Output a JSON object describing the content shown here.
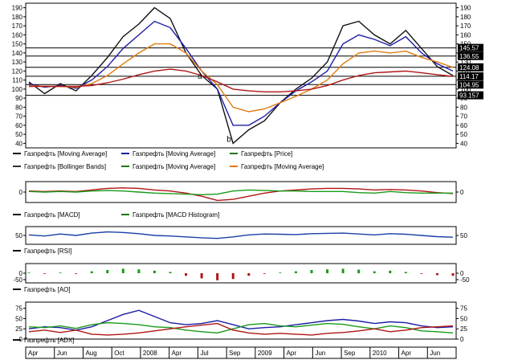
{
  "chart_data": [
    {
      "type": "line",
      "panel": "price",
      "ylim": [
        35,
        195
      ],
      "yticks": [
        40,
        50,
        60,
        70,
        80,
        90,
        100,
        110,
        120,
        130,
        140,
        150,
        160,
        170,
        180,
        190
      ],
      "x": [
        0,
        1,
        2,
        3,
        4,
        5,
        6,
        7,
        8,
        9,
        10,
        11,
        12,
        13,
        14,
        15,
        16,
        17,
        18,
        19,
        20,
        21,
        22,
        23,
        24,
        25,
        26,
        27
      ],
      "series": [
        {
          "name": "Газпрефть [Price]",
          "color": "#111111",
          "values": [
            108,
            95,
            106,
            98,
            115,
            135,
            158,
            172,
            190,
            178,
            140,
            115,
            100,
            40,
            55,
            65,
            85,
            100,
            112,
            130,
            170,
            175,
            160,
            150,
            165,
            145,
            125,
            115
          ]
        },
        {
          "name": "Газпрефть [Moving Average]",
          "color": "#1d1da8",
          "values": [
            106,
            102,
            104,
            101,
            110,
            125,
            145,
            160,
            175,
            168,
            145,
            120,
            100,
            60,
            60,
            70,
            85,
            98,
            108,
            120,
            150,
            160,
            155,
            148,
            158,
            140,
            128,
            120
          ]
        },
        {
          "name": "Газпрефть [Moving Average]",
          "color": "#e07a10",
          "values": [
            104,
            103,
            103,
            102,
            106,
            115,
            128,
            140,
            150,
            150,
            140,
            120,
            105,
            80,
            75,
            78,
            85,
            92,
            100,
            110,
            128,
            140,
            142,
            140,
            142,
            135,
            130,
            124
          ]
        },
        {
          "name": "Газпрефть [Moving Average]",
          "color": "#b01515",
          "values": [
            103,
            103,
            103,
            103,
            104,
            107,
            111,
            116,
            120,
            122,
            120,
            115,
            108,
            100,
            98,
            97,
            97,
            98,
            100,
            104,
            110,
            115,
            118,
            119,
            120,
            118,
            116,
            114
          ]
        }
      ],
      "horizontal_levels": [
        145.57,
        136.55,
        124.08,
        114.17,
        104.95,
        93.157
      ],
      "point_labels": [
        "a",
        "b"
      ],
      "legend": [
        {
          "name": "Газпрефть [Moving Average]",
          "color": "#111111"
        },
        {
          "name": "Газпрефть [Moving Average]",
          "color": "#1d1da8"
        },
        {
          "name": "Газпрефть [Price]",
          "color": "#1a7a1a"
        },
        {
          "name": "Газпрефть [Bollinger Bands]",
          "color": "#333333"
        },
        {
          "name": "Газпрефть [Moving Average]",
          "color": "#1a7a1a"
        },
        {
          "name": "Газпрефть [Moving Average]",
          "color": "#e07a10"
        }
      ]
    },
    {
      "type": "line",
      "panel": "macd",
      "ylim": [
        -1,
        1
      ],
      "yticks": [
        0
      ],
      "series": [
        {
          "name": "Газпрефть [MACD]",
          "color": "#b01515",
          "values": [
            0.1,
            0.05,
            0.1,
            0.05,
            0.2,
            0.35,
            0.4,
            0.35,
            0.2,
            0.1,
            -0.1,
            -0.4,
            -0.8,
            -0.7,
            -0.4,
            -0.1,
            0.1,
            0.2,
            0.3,
            0.35,
            0.35,
            0.3,
            0.2,
            0.25,
            0.2,
            0.1,
            -0.05,
            -0.15
          ]
        },
        {
          "name": "Газпрефть [MACD Histogram]",
          "color": "#1a9a1a",
          "values": [
            0.05,
            0,
            0.05,
            0,
            0.1,
            0.15,
            0.1,
            0,
            -0.1,
            -0.15,
            -0.2,
            -0.25,
            -0.2,
            0.1,
            0.2,
            0.15,
            0.1,
            0.1,
            0.05,
            0.05,
            0.05,
            -0.05,
            -0.1,
            0.05,
            -0.05,
            -0.1,
            -0.1,
            -0.1
          ]
        }
      ],
      "legend": [
        {
          "name": "Газпрефть [MACD]",
          "color": "#111111"
        },
        {
          "name": "Газпрефть [MACD Histogram]",
          "color": "#1a7a1a"
        }
      ]
    },
    {
      "type": "line",
      "panel": "rsi",
      "ylim": [
        20,
        80
      ],
      "yticks": [
        50
      ],
      "series": [
        {
          "name": "Газпрефть [RSI]",
          "color": "#1a3fa8",
          "values": [
            52,
            48,
            55,
            50,
            58,
            62,
            60,
            56,
            50,
            48,
            45,
            42,
            40,
            45,
            52,
            55,
            54,
            53,
            56,
            57,
            58,
            55,
            52,
            56,
            54,
            50,
            46,
            44
          ]
        }
      ],
      "legend": [
        {
          "name": "Газпрефть [RSI]",
          "color": "#111111"
        }
      ]
    },
    {
      "type": "bar",
      "panel": "ao",
      "ylim": [
        -75,
        75
      ],
      "yticks": [
        0,
        -50
      ],
      "series": [
        {
          "name": "Газпрефть [AO]",
          "values": [
            5,
            -5,
            5,
            -5,
            15,
            25,
            35,
            30,
            20,
            10,
            -20,
            -40,
            -55,
            -45,
            -20,
            -5,
            5,
            15,
            25,
            30,
            35,
            28,
            15,
            20,
            10,
            -5,
            -15,
            -20
          ]
        }
      ],
      "legend": [
        {
          "name": "Газпрефть [AO]",
          "color": "#111111"
        }
      ]
    },
    {
      "type": "line",
      "panel": "adx",
      "ylim": [
        0,
        90
      ],
      "yticks": [
        0,
        25,
        50,
        75
      ],
      "series": [
        {
          "name": "Газпрефть [ADX]",
          "color": "#1d1da8",
          "values": [
            25,
            30,
            28,
            22,
            30,
            45,
            60,
            70,
            55,
            40,
            35,
            38,
            45,
            35,
            25,
            28,
            30,
            35,
            40,
            45,
            48,
            44,
            38,
            42,
            40,
            32,
            28,
            30
          ]
        },
        {
          "name": "Газпрефть [ADX]",
          "color": "#1a9a1a",
          "values": [
            30,
            28,
            32,
            26,
            35,
            40,
            38,
            35,
            30,
            28,
            22,
            18,
            15,
            25,
            35,
            38,
            32,
            30,
            34,
            38,
            36,
            30,
            25,
            32,
            28,
            20,
            18,
            15
          ]
        },
        {
          "name": "Газпрефть [ADX]",
          "color": "#b01515",
          "values": [
            18,
            22,
            16,
            22,
            12,
            10,
            12,
            15,
            20,
            25,
            30,
            34,
            38,
            22,
            15,
            12,
            14,
            12,
            10,
            14,
            16,
            20,
            25,
            18,
            22,
            28,
            30,
            32
          ]
        }
      ],
      "legend": [
        {
          "name": "Газпрефть [ADX]",
          "color": "#111111"
        }
      ]
    }
  ],
  "time_axis": [
    "Apr",
    "Jun",
    "Aug",
    "Oct",
    "2008",
    "Apr",
    "Jul",
    "Sep",
    "2009",
    "Apr",
    "Jun",
    "Sep",
    "2010",
    "Apr",
    "Jun"
  ]
}
